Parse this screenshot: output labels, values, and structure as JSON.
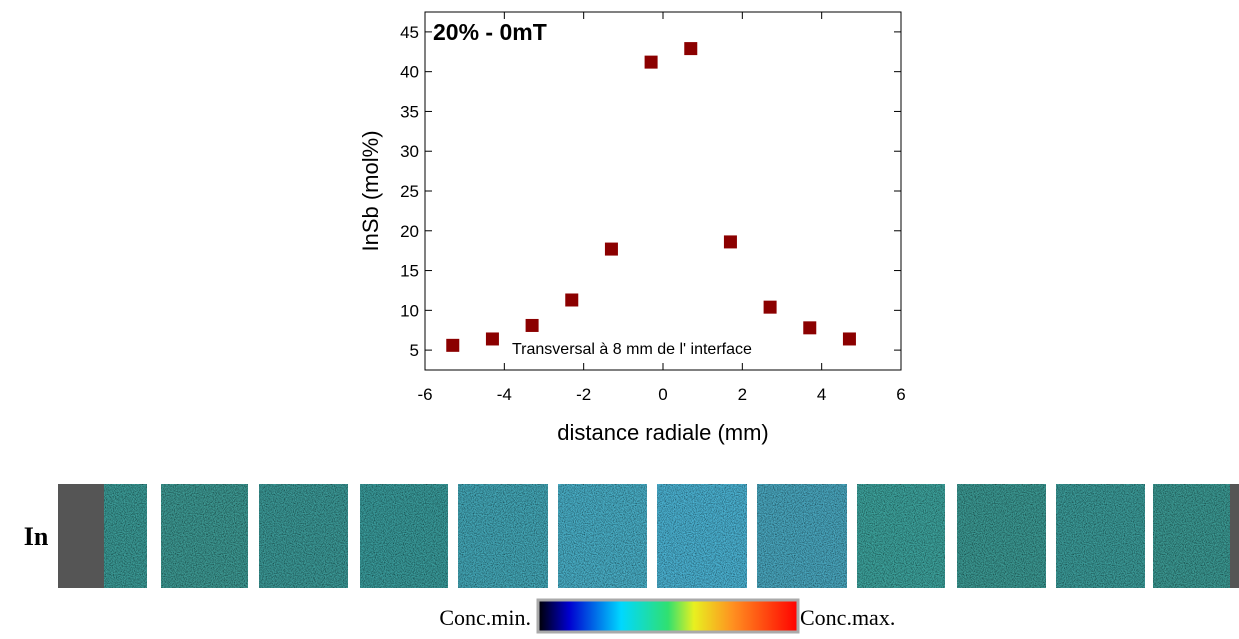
{
  "chart_data": {
    "type": "scatter",
    "annotations": [
      "20% - 0mT",
      "Transversal à 8 mm de l' interface"
    ],
    "x_label": "distance radiale (mm)",
    "y_label": "InSb (mol%)",
    "x": [
      -5.3,
      -4.3,
      -3.3,
      -2.3,
      -1.3,
      -0.3,
      0.7,
      1.7,
      2.7,
      3.7,
      4.7
    ],
    "values": [
      5.6,
      6.4,
      8.1,
      11.3,
      17.7,
      41.2,
      42.9,
      18.6,
      10.4,
      7.8,
      6.4
    ],
    "color": "#8b0000",
    "xlim": [
      -6,
      6
    ],
    "xticks": [
      -6,
      -4,
      -2,
      0,
      2,
      4,
      6
    ],
    "ylim": [
      2.5,
      47.5
    ],
    "yticks": [
      5,
      10,
      15,
      20,
      25,
      30,
      35,
      40,
      45
    ]
  },
  "strip": {
    "label": "In"
  },
  "colorbar": {
    "min_label": "Conc.min.",
    "max_label": "Conc.max."
  }
}
